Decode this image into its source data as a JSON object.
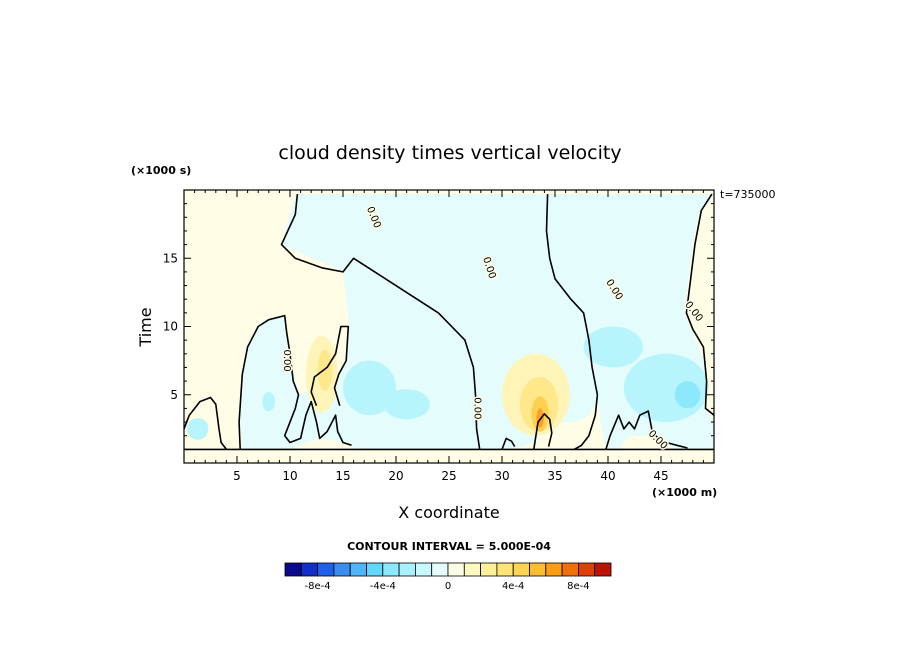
{
  "chart_data": {
    "type": "heatmap",
    "title": "cloud density times vertical velocity",
    "xlabel": "X coordinate",
    "ylabel": "Time",
    "x_units": "(×1000 m)",
    "y_units": "(×1000 s)",
    "timestamp": "t=735000",
    "xlim": [
      0,
      50
    ],
    "ylim": [
      0,
      20
    ],
    "x_ticks": [
      5,
      10,
      15,
      20,
      25,
      30,
      35,
      40,
      45
    ],
    "y_ticks": [
      5,
      10,
      15
    ],
    "x_tick_labels": [
      "5",
      "10",
      "15",
      "20",
      "25",
      "30",
      "35",
      "40",
      "45"
    ],
    "y_tick_labels": [
      "5",
      "10",
      "15"
    ],
    "zero_contour_label": "0.00",
    "contour_interval_text": "CONTOUR INTERVAL = 5.000E-04",
    "colorbar": {
      "levels": [
        "-0.001",
        "-9e-4",
        "-8e-4",
        "-7e-4",
        "-6e-4",
        "-5e-4",
        "-4e-4",
        "-3e-4",
        "-2e-4",
        "-1e-4",
        "0",
        "1e-4",
        "2e-4",
        "3e-4",
        "4e-4",
        "5e-4",
        "6e-4",
        "7e-4",
        "8e-4",
        "9e-4",
        "0.001"
      ],
      "colors": [
        "#0a0a8c",
        "#1030c8",
        "#2060e8",
        "#3c8cf0",
        "#50b4f8",
        "#64d8fc",
        "#8ce8fc",
        "#aaf0fc",
        "#c8f8fc",
        "#e4fcfc",
        "#fcfce4",
        "#fcf8c0",
        "#fcf09a",
        "#fce476",
        "#fcd454",
        "#fcbc32",
        "#fc9c14",
        "#f07008",
        "#dc4004",
        "#bc1404"
      ],
      "labels": [
        "-8e-4",
        "-4e-4",
        "0",
        "4e-4",
        "8e-4"
      ],
      "label_levels": [
        -0.0008,
        -0.0004,
        0,
        0.0004,
        0.0008
      ]
    },
    "regions": [
      {
        "sign": "positive",
        "color": "#fffde6",
        "polygon": [
          [
            0,
            1
          ],
          [
            0,
            4.5
          ],
          [
            1.5,
            5
          ],
          [
            3,
            4.3
          ],
          [
            3.3,
            1.5
          ],
          [
            4,
            1
          ],
          [
            5.5,
            1
          ],
          [
            5.2,
            4
          ],
          [
            5.5,
            6.5
          ],
          [
            6,
            8.5
          ],
          [
            7.5,
            10.5
          ],
          [
            9.5,
            10.8
          ],
          [
            10,
            8
          ],
          [
            10.8,
            5
          ],
          [
            12.5,
            5.5
          ],
          [
            14.3,
            6.5
          ],
          [
            15.3,
            7.5
          ],
          [
            15.6,
            10
          ],
          [
            15,
            14
          ],
          [
            9.2,
            16
          ],
          [
            10,
            18.2
          ],
          [
            10.5,
            19.7
          ],
          [
            0,
            19.7
          ]
        ]
      },
      {
        "sign": "positive",
        "color": "#fffde6",
        "polygon": [
          [
            15,
            14
          ],
          [
            16,
            15
          ],
          [
            18,
            14
          ],
          [
            21,
            12.5
          ],
          [
            25,
            10.5
          ],
          [
            27,
            8
          ],
          [
            27.5,
            5
          ],
          [
            27.6,
            1
          ],
          [
            31,
            1
          ],
          [
            33,
            1.5
          ],
          [
            34,
            2.5
          ],
          [
            35.5,
            3
          ],
          [
            37,
            3
          ],
          [
            38.2,
            3.5
          ],
          [
            39,
            4.5
          ],
          [
            38.5,
            8
          ],
          [
            37.7,
            11
          ],
          [
            35,
            13.5
          ],
          [
            34.5,
            15
          ],
          [
            34.2,
            18
          ],
          [
            34.3,
            19.7
          ],
          [
            10.5,
            19.7
          ],
          [
            10,
            18.2
          ],
          [
            9.2,
            16
          ]
        ]
      },
      {
        "sign": "positive",
        "color": "#fffde6",
        "polygon": [
          [
            41,
            1
          ],
          [
            42,
            2
          ],
          [
            44,
            2
          ],
          [
            45.3,
            1.5
          ],
          [
            46.5,
            1
          ],
          [
            50,
            1
          ],
          [
            50,
            3
          ],
          [
            49.2,
            4
          ],
          [
            49.3,
            7
          ],
          [
            48,
            9.5
          ],
          [
            47.2,
            11
          ],
          [
            47.5,
            13
          ],
          [
            48,
            16
          ],
          [
            48.5,
            18
          ],
          [
            50,
            19.7
          ],
          [
            50,
            4
          ]
        ]
      },
      {
        "sign": "negative",
        "color": "#e4fcfc",
        "polygon": [
          [
            15,
            14
          ],
          [
            9.2,
            16
          ],
          [
            10,
            18.2
          ],
          [
            10.5,
            19.7
          ],
          [
            34.3,
            19.7
          ],
          [
            34.2,
            18
          ],
          [
            34.5,
            15
          ],
          [
            35,
            13.5
          ],
          [
            37.7,
            11
          ],
          [
            38.5,
            8
          ],
          [
            39,
            4.5
          ],
          [
            38.2,
            3.5
          ],
          [
            37,
            3
          ],
          [
            35.5,
            3
          ],
          [
            34,
            2.5
          ],
          [
            33,
            1.5
          ],
          [
            31,
            1
          ],
          [
            27.6,
            1
          ],
          [
            27.5,
            5
          ],
          [
            27,
            8
          ],
          [
            25,
            10.5
          ],
          [
            21,
            12.5
          ],
          [
            18,
            14
          ],
          [
            16,
            15
          ]
        ]
      },
      {
        "sign": "negative",
        "color": "#e4fcfc",
        "polygon": [
          [
            34.3,
            19.7
          ],
          [
            50,
            19.7
          ],
          [
            48.5,
            18
          ],
          [
            48,
            16
          ],
          [
            47.5,
            13
          ],
          [
            47.2,
            11
          ],
          [
            48,
            9.5
          ],
          [
            49.3,
            7
          ],
          [
            49.2,
            4
          ],
          [
            50,
            3
          ],
          [
            50,
            1
          ],
          [
            46.5,
            1
          ],
          [
            45.3,
            1.5
          ],
          [
            44,
            2
          ],
          [
            42,
            2
          ],
          [
            41,
            1
          ],
          [
            39.8,
            1
          ],
          [
            39.3,
            3
          ],
          [
            39,
            4.5
          ],
          [
            38.5,
            8
          ],
          [
            37.7,
            11
          ],
          [
            35,
            13.5
          ],
          [
            34.5,
            15
          ],
          [
            34.2,
            18
          ]
        ]
      },
      {
        "sign": "negative",
        "color": "#e4fcfc",
        "polygon": [
          [
            5.5,
            1
          ],
          [
            10,
            1
          ],
          [
            11.5,
            1.5
          ],
          [
            13,
            1.8
          ],
          [
            15,
            1.5
          ],
          [
            16.5,
            1
          ],
          [
            27.6,
            1
          ],
          [
            27.5,
            5
          ],
          [
            27,
            8
          ],
          [
            25,
            10.5
          ],
          [
            21,
            12.5
          ],
          [
            18,
            14
          ],
          [
            16,
            15
          ],
          [
            15,
            14
          ],
          [
            15.6,
            10
          ],
          [
            15.3,
            7.5
          ],
          [
            14.3,
            6.5
          ],
          [
            12.5,
            5.5
          ],
          [
            10.8,
            5
          ],
          [
            10,
            8
          ],
          [
            9.5,
            10.8
          ],
          [
            7.5,
            10.5
          ],
          [
            6,
            8.5
          ],
          [
            5.5,
            6.5
          ],
          [
            5.2,
            4
          ]
        ]
      },
      {
        "sign": "positive",
        "color": "#fff4b8",
        "cx": 33.2,
        "cy": 5,
        "rx": 3.2,
        "ry": 3,
        "level": "2e-4"
      },
      {
        "sign": "positive",
        "color": "#ffe88a",
        "cx": 33.5,
        "cy": 4.3,
        "rx": 1.8,
        "ry": 2,
        "level": "4e-4"
      },
      {
        "sign": "positive",
        "color": "#ffcf50",
        "cx": 33.6,
        "cy": 3.6,
        "rx": 0.8,
        "ry": 1.3,
        "level": "6e-4"
      },
      {
        "sign": "positive",
        "color": "#ff9e28",
        "cx": 33.6,
        "cy": 3.3,
        "rx": 0.35,
        "ry": 0.7,
        "level": "8e-4"
      },
      {
        "sign": "positive",
        "color": "#fff4b8",
        "cx": 13,
        "cy": 6.5,
        "rx": 1.5,
        "ry": 2.8,
        "level": "2e-4"
      },
      {
        "sign": "positive",
        "color": "#ffe88a",
        "cx": 13.3,
        "cy": 6.8,
        "rx": 0.7,
        "ry": 1.5,
        "level": "4e-4"
      },
      {
        "sign": "negative",
        "color": "#b8f4fc",
        "cx": 17.5,
        "cy": 5.5,
        "rx": 2.5,
        "ry": 2,
        "level": "-2e-4"
      },
      {
        "sign": "negative",
        "color": "#b8f4fc",
        "cx": 21,
        "cy": 4.3,
        "rx": 2.2,
        "ry": 1.1,
        "level": "-2e-4"
      },
      {
        "sign": "negative",
        "color": "#b8f4fc",
        "cx": 40.5,
        "cy": 8.5,
        "rx": 2.8,
        "ry": 1.5,
        "level": "-2e-4"
      },
      {
        "sign": "negative",
        "color": "#b8f4fc",
        "cx": 45.5,
        "cy": 5.5,
        "rx": 4,
        "ry": 2.5,
        "level": "-2e-4"
      },
      {
        "sign": "negative",
        "color": "#8ce8fc",
        "cx": 47.5,
        "cy": 5,
        "rx": 1.2,
        "ry": 1,
        "level": "-4e-4"
      },
      {
        "sign": "negative",
        "color": "#b8f4fc",
        "cx": 8,
        "cy": 4.5,
        "rx": 0.6,
        "ry": 0.7,
        "level": "-2e-4"
      },
      {
        "sign": "negative",
        "color": "#b8f4fc",
        "cx": 1.3,
        "cy": 2.5,
        "rx": 1,
        "ry": 0.8,
        "level": "-2e-4"
      }
    ],
    "zero_contours": [
      [
        [
          0,
          1
        ],
        [
          50,
          1
        ]
      ],
      [
        [
          0,
          2.5
        ],
        [
          0.5,
          3.5
        ],
        [
          1.5,
          4.5
        ],
        [
          2.5,
          4.8
        ],
        [
          3,
          4.3
        ],
        [
          3.3,
          2.5
        ],
        [
          3.5,
          1.5
        ],
        [
          4,
          1
        ]
      ],
      [
        [
          5.3,
          1
        ],
        [
          5.2,
          3
        ],
        [
          5.5,
          6.5
        ],
        [
          6,
          8.5
        ],
        [
          7,
          10
        ],
        [
          8,
          10.5
        ],
        [
          9.5,
          10.8
        ],
        [
          9.7,
          9.5
        ],
        [
          10,
          8
        ],
        [
          10.3,
          6
        ],
        [
          10.8,
          5
        ],
        [
          10.5,
          4
        ],
        [
          10,
          3
        ],
        [
          9.5,
          2
        ],
        [
          10,
          1.5
        ],
        [
          11,
          1.8
        ],
        [
          11.5,
          3.5
        ],
        [
          12,
          4.5
        ],
        [
          12.5,
          3
        ],
        [
          12.8,
          1.8
        ],
        [
          13.5,
          2.3
        ],
        [
          14.3,
          3.5
        ],
        [
          14.5,
          2.3
        ],
        [
          15,
          1.5
        ],
        [
          15.8,
          1.3
        ]
      ],
      [
        [
          12.5,
          4.2
        ],
        [
          12,
          5.2
        ],
        [
          12.3,
          6.3
        ],
        [
          13.5,
          7
        ],
        [
          14.3,
          8
        ],
        [
          14.8,
          10
        ],
        [
          15.5,
          10
        ],
        [
          15.3,
          7.5
        ],
        [
          14.6,
          6.5
        ],
        [
          14.2,
          5.5
        ],
        [
          14.7,
          4.2
        ]
      ],
      [
        [
          10.7,
          19.7
        ],
        [
          10.5,
          18.2
        ],
        [
          9.2,
          16
        ],
        [
          10.5,
          15
        ],
        [
          13,
          14.3
        ],
        [
          15,
          14
        ],
        [
          16,
          15
        ],
        [
          18,
          14
        ],
        [
          21,
          12.5
        ],
        [
          24,
          11
        ],
        [
          26.5,
          9
        ],
        [
          27.3,
          7
        ],
        [
          27.5,
          5
        ],
        [
          27.6,
          2.5
        ],
        [
          27.9,
          1
        ]
      ],
      [
        [
          34.3,
          19.7
        ],
        [
          34.2,
          17
        ],
        [
          34.5,
          15
        ],
        [
          35,
          13.5
        ],
        [
          36.5,
          12
        ],
        [
          37.7,
          11
        ],
        [
          38.2,
          9
        ],
        [
          38.5,
          7
        ],
        [
          39,
          5
        ],
        [
          38.8,
          3.5
        ],
        [
          38.2,
          2
        ],
        [
          37.5,
          1.3
        ],
        [
          36.8,
          1
        ]
      ],
      [
        [
          39.8,
          1
        ],
        [
          40.2,
          2
        ],
        [
          41,
          3.5
        ],
        [
          41.5,
          2.5
        ],
        [
          42,
          3
        ],
        [
          42.5,
          2.5
        ],
        [
          43,
          3.5
        ],
        [
          43.8,
          3.8
        ],
        [
          44.2,
          2.2
        ],
        [
          44.8,
          1.8
        ],
        [
          45.5,
          1.5
        ],
        [
          46.5,
          1.3
        ],
        [
          47.5,
          1.1
        ]
      ],
      [
        [
          49.8,
          19.7
        ],
        [
          48.8,
          18.5
        ],
        [
          48.2,
          16
        ],
        [
          47.8,
          13.5
        ],
        [
          47.4,
          11
        ],
        [
          48,
          9.8
        ],
        [
          49,
          8.5
        ],
        [
          49.3,
          6
        ],
        [
          49.2,
          4
        ],
        [
          50,
          3.5
        ]
      ],
      [
        [
          33,
          1
        ],
        [
          33.2,
          2
        ],
        [
          33.4,
          3
        ],
        [
          34,
          3.6
        ],
        [
          34.5,
          3.2
        ],
        [
          34.7,
          2.2
        ],
        [
          34.4,
          1.2
        ]
      ],
      [
        [
          30,
          1
        ],
        [
          30.4,
          1.8
        ],
        [
          30.9,
          1.6
        ],
        [
          31.2,
          1.2
        ]
      ]
    ],
    "contour_labels": [
      {
        "x": 17.9,
        "y": 18,
        "angle": 68
      },
      {
        "x": 28.8,
        "y": 14.3,
        "angle": 72
      },
      {
        "x": 40.6,
        "y": 12.7,
        "angle": 58
      },
      {
        "x": 48.1,
        "y": 11.1,
        "angle": 52
      },
      {
        "x": 9.7,
        "y": 7.5,
        "angle": 90
      },
      {
        "x": 27.7,
        "y": 4,
        "angle": 90
      },
      {
        "x": 44.7,
        "y": 1.7,
        "angle": 45
      }
    ]
  }
}
